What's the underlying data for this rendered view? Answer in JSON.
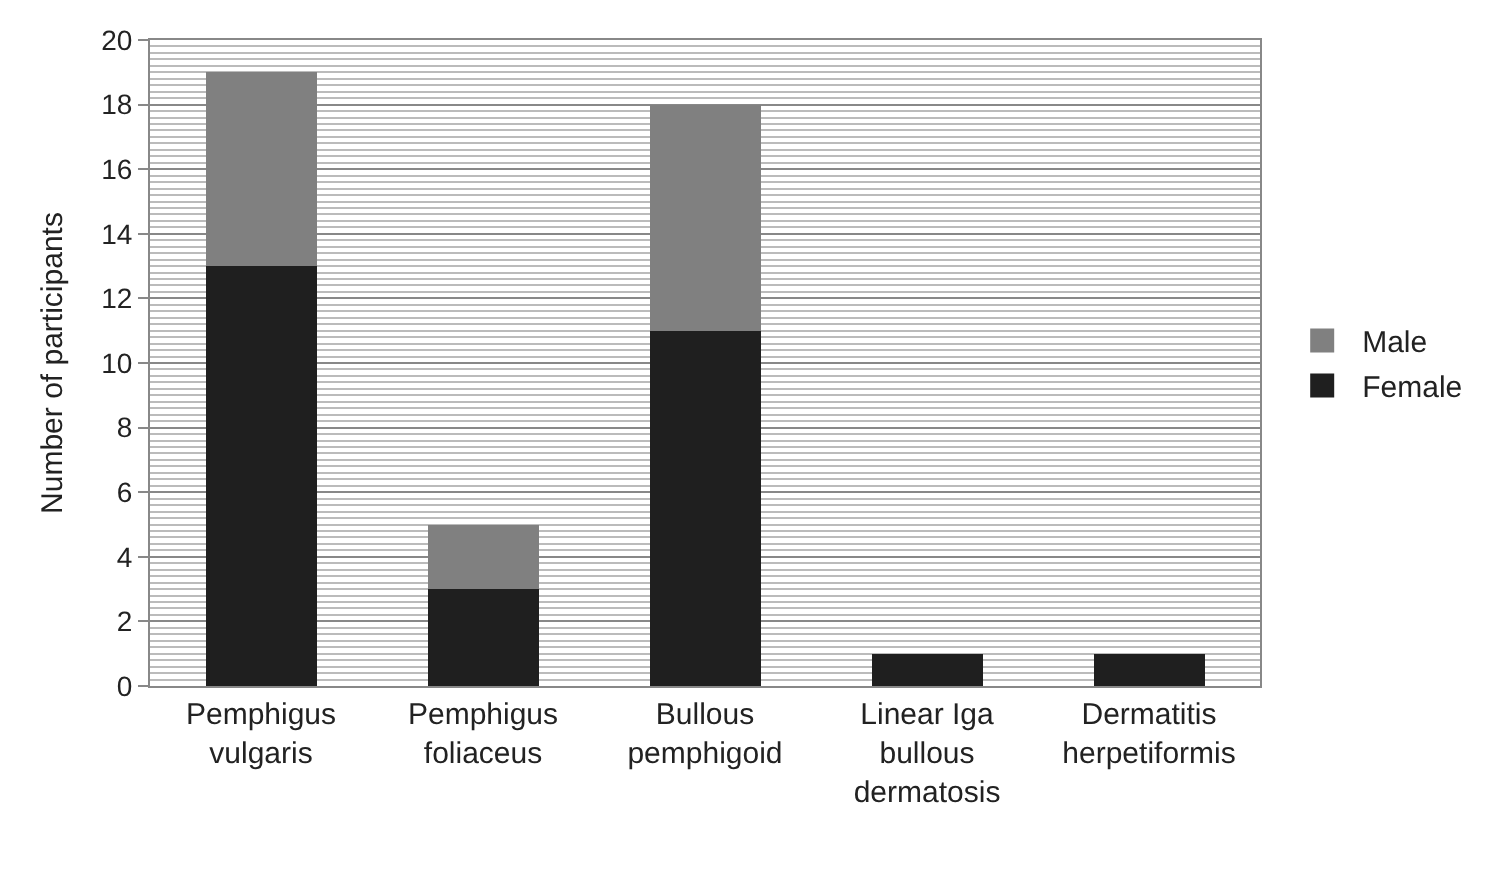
{
  "chart_data": {
    "type": "bar",
    "stacked": true,
    "ylabel": "Number of participants",
    "categories": [
      "Pemphigus vulgaris",
      "Pemphigus foliaceus",
      "Bullous pemphigoid",
      "Linear Iga bullous dermatosis",
      "Dermatitis herpetiformis"
    ],
    "series": [
      {
        "name": "Female",
        "color": "#1f1f1f",
        "values": [
          13,
          3,
          11,
          1,
          1
        ]
      },
      {
        "name": "Male",
        "color": "#808080",
        "values": [
          6,
          2,
          7,
          0,
          0
        ]
      }
    ],
    "ylim": [
      0,
      20
    ],
    "yticks": [
      0,
      2,
      4,
      6,
      8,
      10,
      12,
      14,
      16,
      18,
      20
    ],
    "grid": "y",
    "legend": "right"
  }
}
